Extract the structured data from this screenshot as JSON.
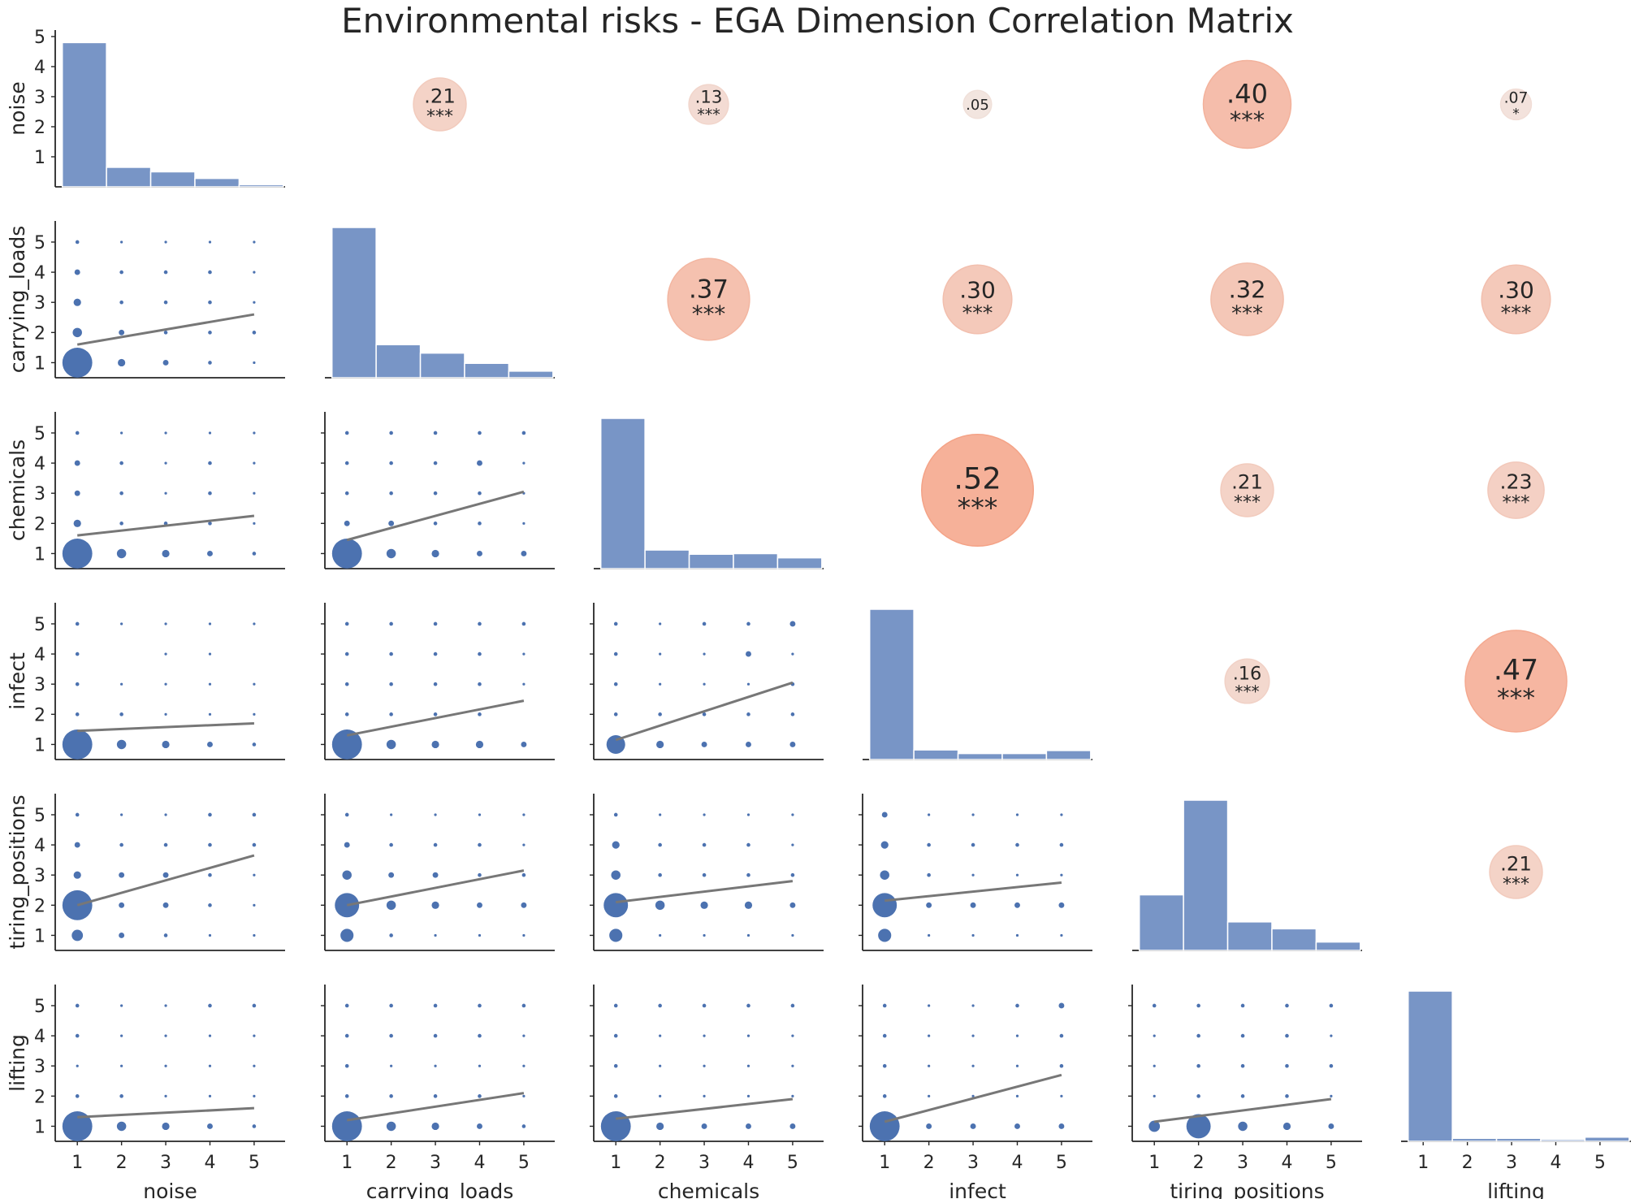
{
  "title": "Environmental risks - EGA Dimension Correlation Matrix",
  "chart_data": {
    "type": "pairplot",
    "title": "Environmental risks - EGA Dimension Correlation Matrix",
    "variables": [
      "noise",
      "carrying_loads",
      "chemicals",
      "infect",
      "tiring_positions",
      "lifting"
    ],
    "scale_ticks": [
      1,
      2,
      3,
      4,
      5
    ],
    "top_left_y_ticks": [
      1,
      2,
      3,
      4,
      5
    ],
    "colors": {
      "points": "#4c72b0",
      "bars": "#7895c6",
      "regression": "#777777",
      "corr_low": "#f0e6e2",
      "corr_high": "#f4a387"
    },
    "histograms": [
      {
        "variable": "noise",
        "counts": [
          4.8,
          0.65,
          0.5,
          0.28,
          0.07
        ]
      },
      {
        "variable": "carrying_loads",
        "counts": [
          5.0,
          1.1,
          0.82,
          0.48,
          0.22
        ]
      },
      {
        "variable": "chemicals",
        "counts": [
          5.0,
          0.62,
          0.48,
          0.5,
          0.36
        ]
      },
      {
        "variable": "infect",
        "counts": [
          5.0,
          0.32,
          0.2,
          0.2,
          0.3
        ]
      },
      {
        "variable": "tiring_positions",
        "counts": [
          1.85,
          5.0,
          0.95,
          0.72,
          0.28
        ]
      },
      {
        "variable": "lifting",
        "counts": [
          5.0,
          0.1,
          0.1,
          0.06,
          0.14
        ]
      }
    ],
    "correlations": [
      {
        "row": "noise",
        "col": "carrying_loads",
        "value": ".21",
        "r": 0.21,
        "sig": "***"
      },
      {
        "row": "noise",
        "col": "chemicals",
        "value": ".13",
        "r": 0.13,
        "sig": "***"
      },
      {
        "row": "noise",
        "col": "infect",
        "value": ".05",
        "r": 0.05,
        "sig": ""
      },
      {
        "row": "noise",
        "col": "tiring_positions",
        "value": ".40",
        "r": 0.4,
        "sig": "***"
      },
      {
        "row": "noise",
        "col": "lifting",
        "value": ".07",
        "r": 0.07,
        "sig": "*"
      },
      {
        "row": "carrying_loads",
        "col": "chemicals",
        "value": ".37",
        "r": 0.37,
        "sig": "***"
      },
      {
        "row": "carrying_loads",
        "col": "infect",
        "value": ".30",
        "r": 0.3,
        "sig": "***"
      },
      {
        "row": "carrying_loads",
        "col": "tiring_positions",
        "value": ".32",
        "r": 0.32,
        "sig": "***"
      },
      {
        "row": "carrying_loads",
        "col": "lifting",
        "value": ".30",
        "r": 0.3,
        "sig": "***"
      },
      {
        "row": "chemicals",
        "col": "infect",
        "value": ".52",
        "r": 0.52,
        "sig": "***"
      },
      {
        "row": "chemicals",
        "col": "tiring_positions",
        "value": ".21",
        "r": 0.21,
        "sig": "***"
      },
      {
        "row": "chemicals",
        "col": "lifting",
        "value": ".23",
        "r": 0.23,
        "sig": "***"
      },
      {
        "row": "infect",
        "col": "tiring_positions",
        "value": ".16",
        "r": 0.16,
        "sig": "***"
      },
      {
        "row": "infect",
        "col": "lifting",
        "value": ".47",
        "r": 0.47,
        "sig": "***"
      },
      {
        "row": "tiring_positions",
        "col": "lifting",
        "value": ".21",
        "r": 0.21,
        "sig": "***"
      }
    ],
    "scatter": [
      {
        "x": "noise",
        "y": "carrying_loads",
        "reg": [
          1.6,
          2.6
        ],
        "sizes": [
          [
            16,
            4,
            3,
            2,
            1
          ],
          [
            5,
            3,
            2,
            2,
            2
          ],
          [
            4,
            2,
            2,
            2,
            1
          ],
          [
            3,
            2,
            2,
            2,
            1
          ],
          [
            2,
            1,
            1,
            1,
            1
          ]
        ]
      },
      {
        "x": "noise",
        "y": "chemicals",
        "reg": [
          1.6,
          2.25
        ],
        "sizes": [
          [
            16,
            5,
            4,
            3,
            2
          ],
          [
            4,
            2,
            2,
            2,
            1
          ],
          [
            3,
            2,
            1,
            2,
            1
          ],
          [
            3,
            2,
            1,
            2,
            1
          ],
          [
            2,
            1,
            1,
            1,
            1
          ]
        ]
      },
      {
        "x": "carrying_loads",
        "y": "chemicals",
        "reg": [
          1.45,
          3.05
        ],
        "sizes": [
          [
            16,
            5,
            4,
            3,
            3
          ],
          [
            3,
            3,
            2,
            2,
            1
          ],
          [
            2,
            2,
            2,
            2,
            1
          ],
          [
            2,
            2,
            2,
            3,
            1
          ],
          [
            2,
            2,
            2,
            2,
            2
          ]
        ]
      },
      {
        "x": "noise",
        "y": "infect",
        "reg": [
          1.45,
          1.7
        ],
        "sizes": [
          [
            16,
            5,
            4,
            3,
            2
          ],
          [
            2,
            2,
            1,
            1,
            1
          ],
          [
            2,
            1,
            1,
            1,
            1
          ],
          [
            2,
            0,
            1,
            1,
            0
          ],
          [
            2,
            1,
            1,
            1,
            1
          ]
        ]
      },
      {
        "x": "carrying_loads",
        "y": "infect",
        "reg": [
          1.3,
          2.45
        ],
        "sizes": [
          [
            16,
            5,
            4,
            4,
            3
          ],
          [
            2,
            2,
            2,
            2,
            0
          ],
          [
            2,
            2,
            2,
            2,
            1
          ],
          [
            2,
            2,
            2,
            2,
            1
          ],
          [
            2,
            2,
            2,
            2,
            2
          ]
        ]
      },
      {
        "x": "chemicals",
        "y": "infect",
        "reg": [
          1.15,
          3.05
        ],
        "sizes": [
          [
            10,
            4,
            3,
            3,
            3
          ],
          [
            2,
            2,
            2,
            2,
            2
          ],
          [
            2,
            1,
            1,
            1,
            2
          ],
          [
            2,
            1,
            1,
            3,
            1
          ],
          [
            2,
            1,
            2,
            2,
            3
          ]
        ]
      },
      {
        "x": "noise",
        "y": "tiring_positions",
        "reg": [
          2.0,
          3.65
        ],
        "sizes": [
          [
            6,
            3,
            2,
            1,
            1
          ],
          [
            16,
            3,
            3,
            2,
            1
          ],
          [
            4,
            3,
            3,
            2,
            1
          ],
          [
            3,
            2,
            2,
            2,
            2
          ],
          [
            2,
            1,
            1,
            2,
            2
          ]
        ]
      },
      {
        "x": "carrying_loads",
        "y": "tiring_positions",
        "reg": [
          2.0,
          3.15
        ],
        "sizes": [
          [
            7,
            2,
            1,
            1,
            1
          ],
          [
            13,
            5,
            4,
            3,
            3
          ],
          [
            5,
            3,
            3,
            2,
            2
          ],
          [
            3,
            2,
            2,
            2,
            1
          ],
          [
            2,
            1,
            1,
            1,
            1
          ]
        ]
      },
      {
        "x": "chemicals",
        "y": "tiring_positions",
        "reg": [
          2.1,
          2.8
        ],
        "sizes": [
          [
            7,
            1,
            1,
            1,
            1
          ],
          [
            13,
            5,
            4,
            4,
            3
          ],
          [
            5,
            2,
            2,
            2,
            2
          ],
          [
            4,
            2,
            2,
            2,
            1
          ],
          [
            2,
            1,
            1,
            1,
            1
          ]
        ]
      },
      {
        "x": "infect",
        "y": "tiring_positions",
        "reg": [
          2.15,
          2.75
        ],
        "sizes": [
          [
            7,
            1,
            1,
            1,
            1
          ],
          [
            13,
            3,
            3,
            3,
            3
          ],
          [
            5,
            2,
            1,
            1,
            1
          ],
          [
            4,
            2,
            2,
            2,
            2
          ],
          [
            3,
            1,
            1,
            1,
            1
          ]
        ]
      },
      {
        "x": "noise",
        "y": "lifting",
        "reg": [
          1.3,
          1.6
        ],
        "sizes": [
          [
            16,
            5,
            4,
            3,
            2
          ],
          [
            2,
            2,
            1,
            1,
            1
          ],
          [
            1,
            1,
            1,
            1,
            1
          ],
          [
            2,
            1,
            1,
            1,
            1
          ],
          [
            2,
            1,
            1,
            2,
            2
          ]
        ]
      },
      {
        "x": "carrying_loads",
        "y": "lifting",
        "reg": [
          1.2,
          2.1
        ],
        "sizes": [
          [
            16,
            5,
            4,
            3,
            2
          ],
          [
            2,
            2,
            2,
            2,
            1
          ],
          [
            2,
            1,
            1,
            1,
            1
          ],
          [
            2,
            2,
            2,
            2,
            1
          ],
          [
            2,
            2,
            2,
            2,
            2
          ]
        ]
      },
      {
        "x": "chemicals",
        "y": "lifting",
        "reg": [
          1.25,
          1.9
        ],
        "sizes": [
          [
            16,
            4,
            3,
            3,
            3
          ],
          [
            2,
            1,
            1,
            1,
            1
          ],
          [
            2,
            1,
            1,
            1,
            1
          ],
          [
            2,
            1,
            1,
            1,
            1
          ],
          [
            2,
            2,
            2,
            2,
            2
          ]
        ]
      },
      {
        "x": "infect",
        "y": "lifting",
        "reg": [
          1.15,
          2.7
        ],
        "sizes": [
          [
            16,
            3,
            3,
            3,
            3
          ],
          [
            2,
            1,
            1,
            1,
            1
          ],
          [
            2,
            1,
            1,
            1,
            2
          ],
          [
            2,
            1,
            1,
            1,
            2
          ],
          [
            2,
            1,
            1,
            2,
            3
          ]
        ]
      },
      {
        "x": "tiring_positions",
        "y": "lifting",
        "reg": [
          1.15,
          1.9
        ],
        "sizes": [
          [
            6,
            13,
            5,
            4,
            3
          ],
          [
            1,
            2,
            2,
            2,
            1
          ],
          [
            1,
            2,
            2,
            2,
            2
          ],
          [
            1,
            2,
            2,
            2,
            1
          ],
          [
            2,
            2,
            2,
            2,
            2
          ]
        ]
      }
    ]
  }
}
